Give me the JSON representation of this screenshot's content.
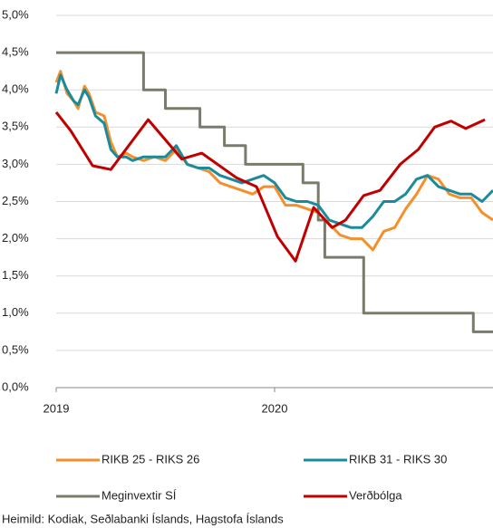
{
  "chart_data": {
    "type": "line",
    "xlim": [
      2019,
      2021
    ],
    "xticks": [
      2019,
      2020
    ],
    "ylim": [
      0,
      5
    ],
    "yticks": [
      {
        "value": 0,
        "label": "0,0%"
      },
      {
        "value": 0.5,
        "label": "0,5%"
      },
      {
        "value": 1,
        "label": "1,0%"
      },
      {
        "value": 1.5,
        "label": "1,5%"
      },
      {
        "value": 2,
        "label": "2,0%"
      },
      {
        "value": 2.5,
        "label": "2,5%"
      },
      {
        "value": 3,
        "label": "3,0%"
      },
      {
        "value": 3.5,
        "label": "3,5%"
      },
      {
        "value": 4,
        "label": "4,0%"
      },
      {
        "value": 4.5,
        "label": "4,5%"
      },
      {
        "value": 5,
        "label": "5,0%"
      }
    ],
    "grid": true,
    "legend": "bottom",
    "series": [
      {
        "name": "RIKB 25 - RIKS 26",
        "color": "#f4902c",
        "x": [
          2019.0,
          2019.02,
          2019.05,
          2019.08,
          2019.1,
          2019.13,
          2019.15,
          2019.18,
          2019.22,
          2019.25,
          2019.28,
          2019.32,
          2019.35,
          2019.4,
          2019.45,
          2019.5,
          2019.55,
          2019.6,
          2019.65,
          2019.7,
          2019.75,
          2019.8,
          2019.85,
          2019.9,
          2019.95,
          2020.0,
          2020.05,
          2020.1,
          2020.15,
          2020.2,
          2020.25,
          2020.3,
          2020.35,
          2020.4,
          2020.45,
          2020.5,
          2020.55,
          2020.6,
          2020.65,
          2020.7,
          2020.75,
          2020.8,
          2020.85,
          2020.9,
          2020.95,
          2021.0
        ],
        "values": [
          4.1,
          4.25,
          3.95,
          3.85,
          3.75,
          4.05,
          3.95,
          3.7,
          3.65,
          3.3,
          3.1,
          3.15,
          3.1,
          3.05,
          3.1,
          3.05,
          3.2,
          3.0,
          2.95,
          2.9,
          2.75,
          2.7,
          2.65,
          2.6,
          2.7,
          2.7,
          2.45,
          2.45,
          2.4,
          2.35,
          2.2,
          2.05,
          2.0,
          2.0,
          1.85,
          2.1,
          2.15,
          2.4,
          2.6,
          2.85,
          2.8,
          2.6,
          2.55,
          2.55,
          2.35,
          2.25
        ]
      },
      {
        "name": "RIKB 31 - RIKS 30",
        "color": "#1b8b9c",
        "x": [
          2019.0,
          2019.02,
          2019.05,
          2019.08,
          2019.1,
          2019.13,
          2019.15,
          2019.18,
          2019.22,
          2019.25,
          2019.28,
          2019.32,
          2019.35,
          2019.4,
          2019.45,
          2019.5,
          2019.55,
          2019.6,
          2019.65,
          2019.7,
          2019.75,
          2019.8,
          2019.85,
          2019.9,
          2019.95,
          2020.0,
          2020.05,
          2020.1,
          2020.15,
          2020.2,
          2020.25,
          2020.3,
          2020.35,
          2020.4,
          2020.45,
          2020.5,
          2020.55,
          2020.6,
          2020.65,
          2020.7,
          2020.75,
          2020.8,
          2020.85,
          2020.9,
          2020.95,
          2021.0
        ],
        "values": [
          3.95,
          4.2,
          4.0,
          3.85,
          3.8,
          4.0,
          3.9,
          3.65,
          3.55,
          3.2,
          3.1,
          3.1,
          3.05,
          3.1,
          3.1,
          3.1,
          3.25,
          3.0,
          2.95,
          2.95,
          2.85,
          2.8,
          2.75,
          2.8,
          2.85,
          2.75,
          2.55,
          2.5,
          2.5,
          2.45,
          2.25,
          2.2,
          2.15,
          2.15,
          2.3,
          2.5,
          2.5,
          2.6,
          2.8,
          2.85,
          2.7,
          2.65,
          2.6,
          2.6,
          2.5,
          2.65
        ]
      },
      {
        "name": "Meginvextir SÍ",
        "color": "#7b7b6b",
        "x": [
          2019,
          2019.4,
          2019.4,
          2019.5,
          2019.5,
          2019.658,
          2019.658,
          2019.77,
          2019.77,
          2019.867,
          2019.867,
          2020.13,
          2020.13,
          2020.2,
          2020.2,
          2020.23,
          2020.23,
          2020.408,
          2020.408,
          2020.91,
          2020.91,
          2021
        ],
        "values": [
          4.5,
          4.5,
          4.0,
          4.0,
          3.75,
          3.75,
          3.5,
          3.5,
          3.25,
          3.25,
          3.0,
          3.0,
          2.75,
          2.75,
          2.25,
          2.25,
          1.75,
          1.75,
          1.0,
          1.0,
          0.75,
          0.75
        ]
      },
      {
        "name": "Verðbólga",
        "color": "#c00000",
        "x": [
          2019.0,
          2019.067,
          2019.167,
          2019.25,
          2019.421,
          2019.575,
          2019.667,
          2019.825,
          2019.917,
          2020.013,
          2020.096,
          2020.179,
          2020.263,
          2020.325,
          2020.408,
          2020.483,
          2020.575,
          2020.658,
          2020.733,
          2020.808,
          2020.875,
          2020.963
        ],
        "values": [
          3.7,
          3.45,
          2.98,
          2.93,
          3.6,
          3.07,
          3.15,
          2.82,
          2.7,
          2.03,
          1.7,
          2.42,
          2.15,
          2.25,
          2.58,
          2.65,
          3.0,
          3.2,
          3.5,
          3.58,
          3.48,
          3.6
        ]
      }
    ],
    "source": "Heimild: Kodiak, Seðlabanki Íslands, Hagstofa Íslands"
  }
}
